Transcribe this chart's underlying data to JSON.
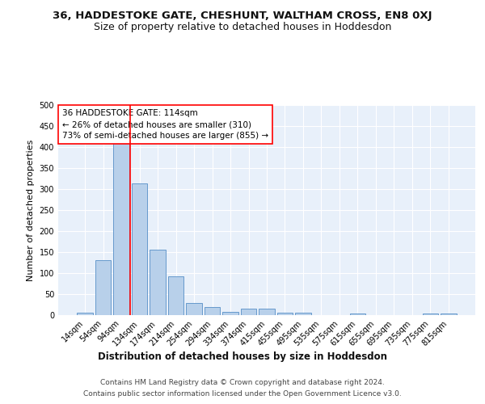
{
  "title": "36, HADDESTOKE GATE, CHESHUNT, WALTHAM CROSS, EN8 0XJ",
  "subtitle": "Size of property relative to detached houses in Hoddesdon",
  "xlabel": "Distribution of detached houses by size in Hoddesdon",
  "ylabel": "Number of detached properties",
  "bar_labels": [
    "14sqm",
    "54sqm",
    "94sqm",
    "134sqm",
    "174sqm",
    "214sqm",
    "254sqm",
    "294sqm",
    "334sqm",
    "374sqm",
    "415sqm",
    "455sqm",
    "495sqm",
    "535sqm",
    "575sqm",
    "615sqm",
    "655sqm",
    "695sqm",
    "735sqm",
    "775sqm",
    "815sqm"
  ],
  "bar_values": [
    6,
    130,
    410,
    313,
    155,
    92,
    29,
    19,
    8,
    15,
    15,
    6,
    6,
    0,
    0,
    3,
    0,
    0,
    0,
    3,
    3
  ],
  "bar_color": "#b8d0ea",
  "bar_edge_color": "#6699cc",
  "bg_color": "#e8f0fa",
  "grid_color": "#ffffff",
  "annotation_text1": "36 HADDESTOKE GATE: 114sqm",
  "annotation_text2": "← 26% of detached houses are smaller (310)",
  "annotation_text3": "73% of semi-detached houses are larger (855) →",
  "footnote1": "Contains HM Land Registry data © Crown copyright and database right 2024.",
  "footnote2": "Contains public sector information licensed under the Open Government Licence v3.0.",
  "red_line_bar_index": 2,
  "ylim": [
    0,
    500
  ],
  "yticks": [
    0,
    50,
    100,
    150,
    200,
    250,
    300,
    350,
    400,
    450,
    500
  ],
  "title_fontsize": 9.5,
  "subtitle_fontsize": 9,
  "xlabel_fontsize": 8.5,
  "ylabel_fontsize": 8,
  "tick_fontsize": 7,
  "annotation_fontsize": 7.5,
  "footnote_fontsize": 6.5
}
